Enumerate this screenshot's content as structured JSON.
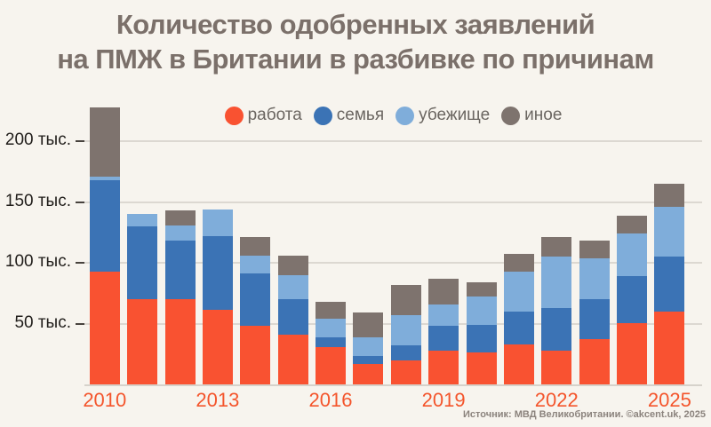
{
  "title": {
    "line1": "Количество одобренных заявлений",
    "line2": "на ПМЖ в Британии в разбивке по причинам"
  },
  "footer": {
    "source": "Источник: МВД Великобритании. ©akcent.uk, 2025"
  },
  "colors": {
    "background": "#f7f4ee",
    "title_text": "#7b706a",
    "axis_label_text": "#201d1a",
    "x_label_text": "#f4552c",
    "gridline": "#dcd8d1",
    "source_text": "#8b837d",
    "work": "#f95231",
    "family": "#3b73b5",
    "asylum": "#7fadda",
    "other": "#7e736e"
  },
  "chart_data": {
    "type": "bar",
    "subtype": "stacked",
    "title": "Количество одобренных заявлений на ПМЖ в Британии в разбивке по причинам",
    "unit": "тыс.",
    "grid": true,
    "legend_position": "top-center",
    "ylim": [
      0,
      235
    ],
    "categories": [
      "2010",
      "2011",
      "2012",
      "2013",
      "2014",
      "2015",
      "2016",
      "2017",
      "2018",
      "2019",
      "2020",
      "2021",
      "2022",
      "2023",
      "2024",
      "2025"
    ],
    "x_tick_labels": [
      "2010",
      "2013",
      "2016",
      "2019",
      "2022",
      "2025"
    ],
    "y_ticks": [
      {
        "value": 50,
        "label": "50 тыс."
      },
      {
        "value": 100,
        "label": "100 тыс."
      },
      {
        "value": 150,
        "label": "150 тыс."
      },
      {
        "value": 200,
        "label": "200 тыс."
      }
    ],
    "series": [
      {
        "name": "работа",
        "color": "#f95231",
        "values": [
          93,
          70,
          70,
          61,
          48,
          41,
          31,
          17,
          20,
          28,
          26,
          33,
          28,
          37,
          50,
          60
        ]
      },
      {
        "name": "семья",
        "color": "#3b73b5",
        "values": [
          75,
          60,
          48,
          61,
          43,
          29,
          8,
          6,
          12,
          20,
          23,
          27,
          35,
          33,
          39,
          45
        ]
      },
      {
        "name": "убежище",
        "color": "#7fadda",
        "values": [
          3,
          10,
          13,
          22,
          15,
          20,
          15,
          16,
          25,
          18,
          23,
          33,
          42,
          34,
          35,
          41
        ]
      },
      {
        "name": "иное",
        "color": "#7e736e",
        "values": [
          57,
          0,
          12,
          0,
          15,
          16,
          14,
          20,
          25,
          21,
          12,
          14,
          16,
          14,
          15,
          19
        ]
      }
    ],
    "totals": [
      228,
      140,
      143,
      144,
      121,
      106,
      68,
      59,
      82,
      87,
      84,
      107,
      121,
      118,
      139,
      165
    ],
    "source": "Источник: МВД Великобритании. ©akcent.uk, 2025"
  }
}
